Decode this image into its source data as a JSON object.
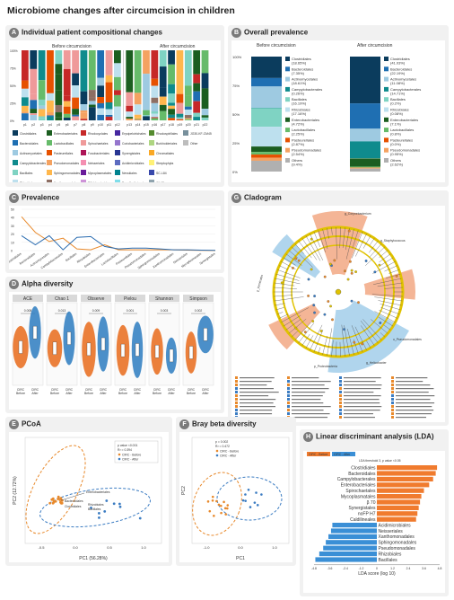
{
  "title": "Microbiome changes after circumcision in children",
  "panels": {
    "A": {
      "letter": "A",
      "title": "Individual patient compositional changes",
      "before": "Before circumcision",
      "after": "After circumcision"
    },
    "B": {
      "letter": "B",
      "title": "Overall prevalence",
      "before": "Before circumcision",
      "after": "After circumcision"
    },
    "C": {
      "letter": "C",
      "title": "Prevalence"
    },
    "D": {
      "letter": "D",
      "title": "Alpha diversity"
    },
    "E": {
      "letter": "E",
      "title": "PCoA"
    },
    "F": {
      "letter": "F",
      "title": "Bray beta diversity"
    },
    "G": {
      "letter": "G",
      "title": "Cladogram"
    },
    "H": {
      "letter": "H",
      "title": "Linear discriminant analysis (LDA)"
    }
  },
  "legendA": [
    {
      "name": "Clostridiales",
      "color": "#0b3c5d"
    },
    {
      "name": "Bacteroidales",
      "color": "#1f6fb2"
    },
    {
      "name": "Actinomycetales",
      "color": "#9ecae1"
    },
    {
      "name": "Campylobacterales",
      "color": "#0f8b8d"
    },
    {
      "name": "Bacillales",
      "color": "#7fd3c3"
    },
    {
      "name": "Rhizobiales",
      "color": "#bde0ee"
    },
    {
      "name": "Enterobacteriales",
      "color": "#1b5e20"
    },
    {
      "name": "Lactobacillales",
      "color": "#66bb6a"
    },
    {
      "name": "Pasteurellales",
      "color": "#e65100"
    },
    {
      "name": "Pseudomonadales",
      "color": "#f4a261"
    },
    {
      "name": "Sphingomonadales",
      "color": "#ffb74d"
    },
    {
      "name": "Xanthomonadales",
      "color": "#8d6e63"
    },
    {
      "name": "Rhodocyclales",
      "color": "#c62828"
    },
    {
      "name": "Spirochaetales",
      "color": "#ef9a9a"
    },
    {
      "name": "Fusobacteriales",
      "color": "#ad1457"
    },
    {
      "name": "Neisseriales",
      "color": "#f48fb1"
    },
    {
      "name": "Mycoplasmatales",
      "color": "#6a1b9a"
    },
    {
      "name": "Bifidobacteriales",
      "color": "#ce93d8"
    },
    {
      "name": "Erysipelotrichales",
      "color": "#4527a0"
    },
    {
      "name": "Coriobacteriales",
      "color": "#9575cd"
    },
    {
      "name": "Synergistales",
      "color": "#283593"
    },
    {
      "name": "Acidimicrobiales",
      "color": "#5c6bc0"
    },
    {
      "name": "Nevskiales",
      "color": "#00838f"
    },
    {
      "name": "Desulfovibrionales",
      "color": "#80deea"
    },
    {
      "name": "Rhodospirillales",
      "color": "#558b2f"
    },
    {
      "name": "Burkholderiales",
      "color": "#aed581"
    },
    {
      "name": "Chromatiales",
      "color": "#f9a825"
    },
    {
      "name": "Streptophyta",
      "color": "#fff176"
    },
    {
      "name": "SC-I-84",
      "color": "#3949ab"
    },
    {
      "name": "iii1-15",
      "color": "#90a4ae"
    },
    {
      "name": "JG30-KF-CM45",
      "color": "#78909c"
    },
    {
      "name": "Other",
      "color": "#bdbdbd"
    }
  ],
  "chart_data": [
    {
      "type": "bar",
      "title": "Overall prevalence",
      "ylim": [
        0,
        100
      ],
      "y_ticks": [
        "0%",
        "25%",
        "50%",
        "75%",
        "100%"
      ],
      "categories": [
        "Before circumcision",
        "After circumcision"
      ],
      "series": [
        {
          "name": "Clostridiales",
          "values": [
            18.65,
            41.03
          ],
          "label_before": "(18.65%)",
          "label_after": "(41.03%)"
        },
        {
          "name": "Bacteroidales",
          "values": [
            7.35,
            22.19
          ],
          "label_before": "(7.35%)",
          "label_after": "(22.19%)"
        },
        {
          "name": "Actinomycetales",
          "values": [
            18.61,
            11.08
          ],
          "label_before": "(18.61%)",
          "label_after": "(11.08%)"
        },
        {
          "name": "Campylobacterales",
          "values": [
            0.26,
            14.71
          ],
          "label_before": "(0.26%)",
          "label_after": "(14.71%)"
        },
        {
          "name": "Bacillales",
          "values": [
            16.19,
            0.2
          ],
          "label_before": "(16.19%)",
          "label_after": "(0.2%)"
        },
        {
          "name": "Rhizobiales",
          "values": [
            17.16,
            0.08
          ],
          "label_before": "(17.16%)",
          "label_after": "(0.08%)"
        },
        {
          "name": "Enterobacteriales",
          "values": [
            4.72,
            7.1
          ],
          "label_before": "(4.72%)",
          "label_after": "(7.1%)"
        },
        {
          "name": "Lactobacillales",
          "values": [
            2.25,
            0.8
          ],
          "label_before": "(2.25%)",
          "label_after": "(0.8%)"
        },
        {
          "name": "Pasteurellales",
          "values": [
            2.87,
            0.0
          ],
          "label_before": "(2.87%)",
          "label_after": "(0.0%)"
        },
        {
          "name": "Pseudomonadales",
          "values": [
            2.54,
            0.95
          ],
          "label_before": "(2.54%)",
          "label_after": "(0.95%)"
        },
        {
          "name": "Others",
          "values": [
            9.4,
            2.62
          ],
          "label_before": "(9.4%)",
          "label_after": "(2.62%)"
        }
      ]
    },
    {
      "type": "line",
      "title": "Prevalence",
      "ylim": [
        0,
        50
      ],
      "y_ticks": [
        "0",
        "10",
        "20",
        "30",
        "40",
        "50"
      ],
      "categories": [
        "Clostridiales",
        "Bacteroidales",
        "Actinomycetales",
        "Campylobacterales",
        "Bacillales",
        "Rhizobiales",
        "Enterobacteriales",
        "Lactobacillales",
        "Pasteurellales",
        "Pseudomonadales",
        "Sphingomonadales",
        "Xanthomonadales",
        "Neisseriales",
        "Mycoplasmatales",
        "Synergistales"
      ],
      "series": [
        {
          "name": "CIRC - Before",
          "color": "#e8892b",
          "values": [
            41,
            22,
            11,
            15,
            2,
            1,
            7,
            1,
            1,
            1,
            1,
            1,
            0.5,
            0.3,
            0.2
          ]
        },
        {
          "name": "CIRC - After",
          "color": "#2b6cb0",
          "values": [
            18,
            7,
            18,
            1,
            16,
            17,
            5,
            2,
            3,
            3,
            2,
            1,
            1,
            0.5,
            0.3
          ]
        }
      ]
    },
    {
      "type": "bar",
      "title": "Linear discriminant analysis (LDA)",
      "xlabel": "LDA score (log 10)",
      "note": "LDA threshold 3, p value <0.05",
      "legend": [
        "CIRC - Before",
        "CIRC - After"
      ],
      "x_ticks": [
        "-4.8",
        "-3.6",
        "-2.4",
        "-1.2",
        "0",
        "1.2",
        "2.4",
        "3.6",
        "4.8"
      ],
      "categories": [
        "Clostridiales",
        "Bacteroidales",
        "Campylobacterales",
        "Enterobacteriales",
        "Spirochaetales",
        "Mycoplasmatales",
        "β 70",
        "Synergistales",
        "noFP H7",
        "Caldilineales",
        "Acidimicrobiales",
        "Neisseriales",
        "Xanthomonadales",
        "Sphingomonadales",
        "Pseudomonadales",
        "Rhizobiales",
        "Bacillales"
      ],
      "values": [
        4.6,
        4.5,
        4.3,
        4.0,
        3.6,
        3.4,
        3.3,
        3.2,
        3.1,
        3.0,
        -3.4,
        -3.5,
        -3.7,
        -3.9,
        -4.1,
        -4.4,
        -4.7
      ]
    }
  ],
  "alpha": {
    "metrics": [
      "ACE",
      "Chao 1",
      "Observe",
      "Pielou",
      "Shannon",
      "Simpson"
    ],
    "p_values": [
      "0.008",
      "0.013",
      "0.009",
      "0.001",
      "0.003",
      "0.002"
    ],
    "groups": [
      "CIRC Before",
      "CIRC After"
    ]
  },
  "pcoa": {
    "xlabel": "PC1 (56.28%)",
    "ylabel": "PC2 (12.72%)",
    "x_ticks": [
      "-0.5",
      "0.0",
      "0.5",
      "1.0"
    ],
    "stat": "p value <0.001",
    "r2": "R² = 0.394",
    "legend": [
      "CIRC - Before",
      "CIRC - After"
    ],
    "labels": [
      "Enterobacteriales",
      "Bacteroidales",
      "Clostridiales",
      "Rhizobiales",
      "Bacillales"
    ]
  },
  "bray": {
    "xlabel": "PC1",
    "ylabel": "PC2",
    "x_ticks": [
      "-1.0",
      "0.0",
      "1.0"
    ],
    "stat": "p = 0.002",
    "r2": "R² = 0.472",
    "legend": [
      "CIRC - Before",
      "CIRC - After"
    ]
  },
  "clade": {
    "labels": [
      "g_Corynebacterium",
      "g_Staphylococcus",
      "p_Firmicutes",
      "p_Proteobacteria",
      "o_Pseudomonadales",
      "g_Helicobacter"
    ]
  }
}
